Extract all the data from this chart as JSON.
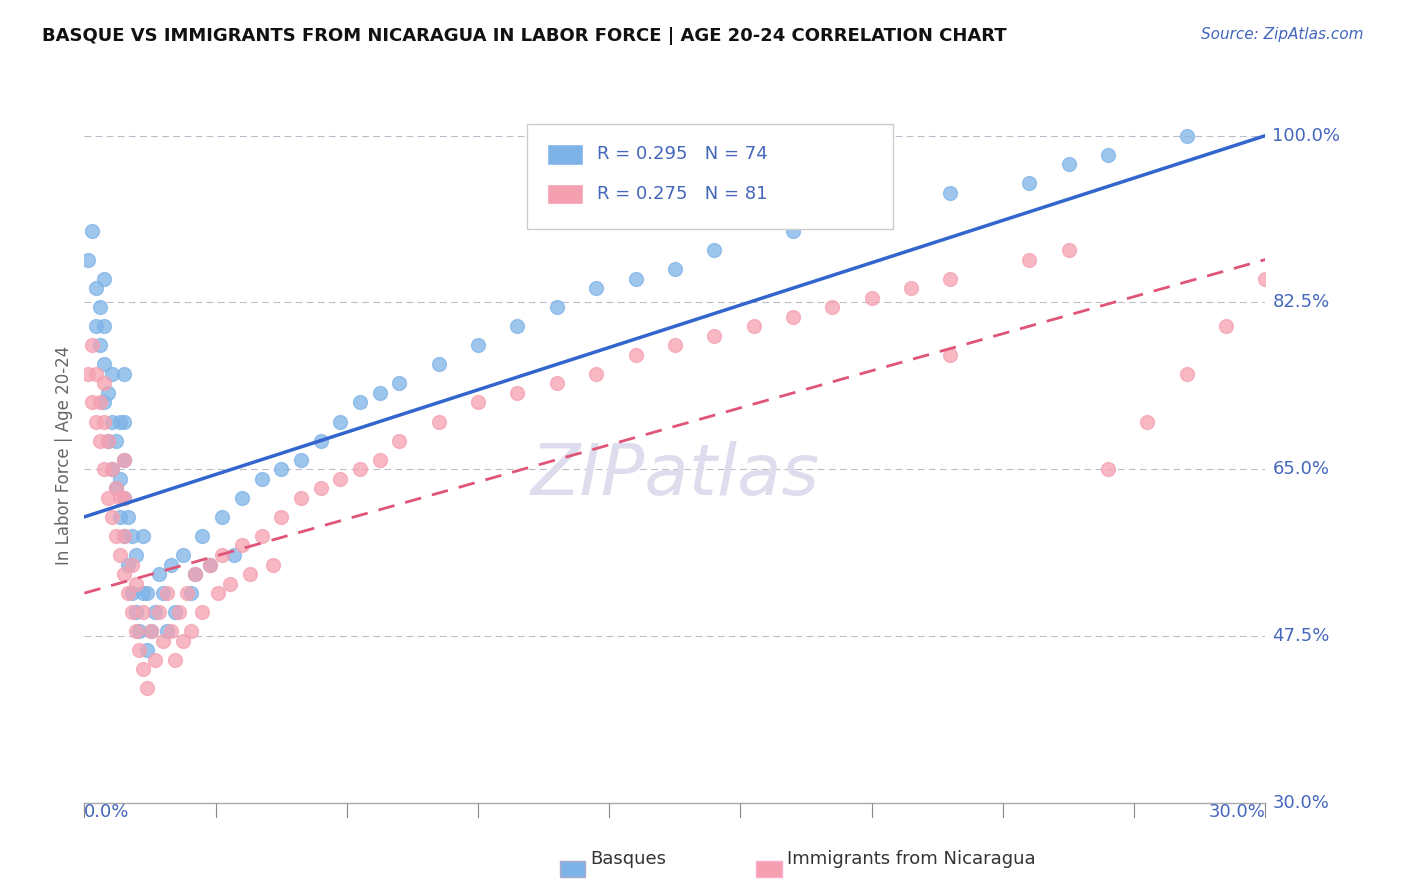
{
  "title": "BASQUE VS IMMIGRANTS FROM NICARAGUA IN LABOR FORCE | AGE 20-24 CORRELATION CHART",
  "source": "Source: ZipAtlas.com",
  "ylabel": "In Labor Force | Age 20-24",
  "x_min": 0.0,
  "x_max": 0.3,
  "y_min": 0.3,
  "y_max": 1.03,
  "y_ticks": [
    0.3,
    0.475,
    0.65,
    0.825,
    1.0
  ],
  "y_tick_labels": [
    "30.0%",
    "47.5%",
    "65.0%",
    "82.5%",
    "100.0%"
  ],
  "blue_R": 0.295,
  "blue_N": 74,
  "pink_R": 0.275,
  "pink_N": 81,
  "blue_color": "#7EB3E8",
  "pink_color": "#F5A0B0",
  "blue_line_color": "#3366CC",
  "pink_line_color": "#E05577",
  "legend_label_blue": "Basques",
  "legend_label_pink": "Immigrants from Nicaragua",
  "blue_line_x0": 0.0,
  "blue_line_y0": 0.6,
  "blue_line_x1": 0.3,
  "blue_line_y1": 1.0,
  "pink_line_x0": 0.0,
  "pink_line_y0": 0.52,
  "pink_line_x1": 0.3,
  "pink_line_y1": 0.87,
  "blue_scatter_x": [
    0.001,
    0.002,
    0.003,
    0.003,
    0.004,
    0.004,
    0.005,
    0.005,
    0.005,
    0.005,
    0.006,
    0.006,
    0.007,
    0.007,
    0.007,
    0.008,
    0.008,
    0.009,
    0.009,
    0.009,
    0.01,
    0.01,
    0.01,
    0.01,
    0.01,
    0.011,
    0.011,
    0.012,
    0.012,
    0.013,
    0.013,
    0.014,
    0.015,
    0.015,
    0.016,
    0.016,
    0.017,
    0.018,
    0.019,
    0.02,
    0.021,
    0.022,
    0.023,
    0.025,
    0.027,
    0.028,
    0.03,
    0.032,
    0.035,
    0.038,
    0.04,
    0.045,
    0.05,
    0.055,
    0.06,
    0.065,
    0.07,
    0.075,
    0.08,
    0.09,
    0.1,
    0.11,
    0.12,
    0.13,
    0.14,
    0.15,
    0.16,
    0.18,
    0.2,
    0.22,
    0.24,
    0.25,
    0.26,
    0.28
  ],
  "blue_scatter_y": [
    0.87,
    0.9,
    0.8,
    0.84,
    0.78,
    0.82,
    0.72,
    0.76,
    0.8,
    0.85,
    0.68,
    0.73,
    0.65,
    0.7,
    0.75,
    0.63,
    0.68,
    0.6,
    0.64,
    0.7,
    0.58,
    0.62,
    0.66,
    0.7,
    0.75,
    0.55,
    0.6,
    0.52,
    0.58,
    0.5,
    0.56,
    0.48,
    0.52,
    0.58,
    0.46,
    0.52,
    0.48,
    0.5,
    0.54,
    0.52,
    0.48,
    0.55,
    0.5,
    0.56,
    0.52,
    0.54,
    0.58,
    0.55,
    0.6,
    0.56,
    0.62,
    0.64,
    0.65,
    0.66,
    0.68,
    0.7,
    0.72,
    0.73,
    0.74,
    0.76,
    0.78,
    0.8,
    0.82,
    0.84,
    0.85,
    0.86,
    0.88,
    0.9,
    0.92,
    0.94,
    0.95,
    0.97,
    0.98,
    1.0
  ],
  "pink_scatter_x": [
    0.001,
    0.002,
    0.002,
    0.003,
    0.003,
    0.004,
    0.004,
    0.005,
    0.005,
    0.005,
    0.006,
    0.006,
    0.007,
    0.007,
    0.008,
    0.008,
    0.009,
    0.009,
    0.01,
    0.01,
    0.01,
    0.01,
    0.011,
    0.012,
    0.012,
    0.013,
    0.013,
    0.014,
    0.015,
    0.015,
    0.016,
    0.017,
    0.018,
    0.019,
    0.02,
    0.021,
    0.022,
    0.023,
    0.024,
    0.025,
    0.026,
    0.027,
    0.028,
    0.03,
    0.032,
    0.034,
    0.035,
    0.037,
    0.04,
    0.042,
    0.045,
    0.048,
    0.05,
    0.055,
    0.06,
    0.065,
    0.07,
    0.075,
    0.08,
    0.09,
    0.1,
    0.11,
    0.12,
    0.13,
    0.14,
    0.15,
    0.16,
    0.17,
    0.18,
    0.19,
    0.2,
    0.21,
    0.22,
    0.24,
    0.25,
    0.26,
    0.27,
    0.28,
    0.29,
    0.3,
    0.22
  ],
  "pink_scatter_y": [
    0.75,
    0.78,
    0.72,
    0.7,
    0.75,
    0.68,
    0.72,
    0.65,
    0.7,
    0.74,
    0.62,
    0.68,
    0.6,
    0.65,
    0.58,
    0.63,
    0.56,
    0.62,
    0.54,
    0.58,
    0.62,
    0.66,
    0.52,
    0.5,
    0.55,
    0.48,
    0.53,
    0.46,
    0.44,
    0.5,
    0.42,
    0.48,
    0.45,
    0.5,
    0.47,
    0.52,
    0.48,
    0.45,
    0.5,
    0.47,
    0.52,
    0.48,
    0.54,
    0.5,
    0.55,
    0.52,
    0.56,
    0.53,
    0.57,
    0.54,
    0.58,
    0.55,
    0.6,
    0.62,
    0.63,
    0.64,
    0.65,
    0.66,
    0.68,
    0.7,
    0.72,
    0.73,
    0.74,
    0.75,
    0.77,
    0.78,
    0.79,
    0.8,
    0.81,
    0.82,
    0.83,
    0.84,
    0.85,
    0.87,
    0.88,
    0.65,
    0.7,
    0.75,
    0.8,
    0.85,
    0.77
  ]
}
